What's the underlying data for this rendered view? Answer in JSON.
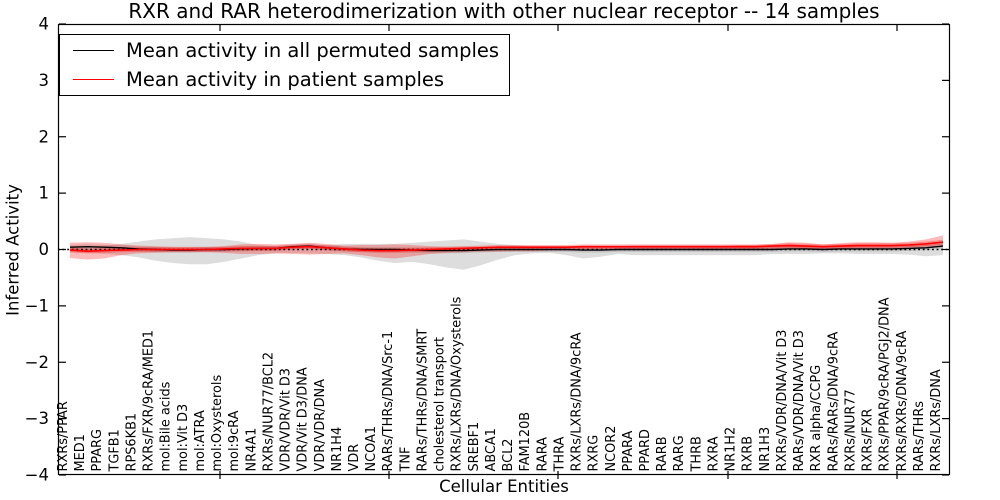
{
  "chart_data": {
    "type": "line",
    "title": "RXR and RAR heterodimerization with other nuclear receptor -- 14 samples",
    "xlabel": "Cellular Entities",
    "ylabel": "Inferred Activity",
    "ylim": [
      -4,
      4
    ],
    "ytick_labels": [
      "4",
      "3",
      "2",
      "1",
      "0",
      "−1",
      "−2",
      "−3",
      "−4"
    ],
    "grid": false,
    "legend_position": "upper left",
    "legend": [
      {
        "label": "Mean activity in all permuted samples",
        "color": "#000000"
      },
      {
        "label": "Mean activity in patient samples",
        "color": "#ff0000"
      }
    ],
    "zero_line": {
      "y": 0,
      "style": "dotted",
      "color": "#000000"
    },
    "categories": [
      "RXRs/PPAR",
      "MED1",
      "PPARG",
      "TGFB1",
      "RPS6KB1",
      "RXRs/FXR/9cRA/MED1",
      "mol:Bile acids",
      "mol:Vit D3",
      "mol:ATRA",
      "mol:Oxysterols",
      "mol:9cRA",
      "NR4A1",
      "RXRs/NUR77/BCL2",
      "VDR/VDR/Vit D3",
      "VDR/Vit D3/DNA",
      "VDR/VDR/DNA",
      "NR1H4",
      "VDR",
      "NCOA1",
      "RARs/THRs/DNA/Src-1",
      "TNF",
      "RARs/THRs/DNA/SMRT",
      "cholesterol transport",
      "RXRs/LXRs/DNA/Oxysterols",
      "SREBF1",
      "ABCA1",
      "BCL2",
      "FAM120B",
      "RARA",
      "THRA",
      "RXRs/LXRs/DNA/9cRA",
      "RXRG",
      "NCOR2",
      "PPARA",
      "PPARD",
      "RARB",
      "RARG",
      "THRB",
      "RXRA",
      "NR1H2",
      "RXRB",
      "NR1H3",
      "RXRs/VDR/DNA/Vit D3",
      "RARs/VDR/DNA/Vit D3",
      "RXR alpha/CCPG",
      "RARs/RARs/DNA/9cRA",
      "RXRs/NUR77",
      "RXRs/FXR",
      "RXRs/PPAR/9cRA/PGJ2/DNA",
      "RXRs/RXRs/DNA/9cRA",
      "RARs/THRs",
      "RXRs/LXRs/DNA"
    ],
    "series": [
      {
        "name": "Mean activity in all permuted samples",
        "color": "#000000",
        "values": [
          0.04,
          0.05,
          0.04,
          0.03,
          0.01,
          0.0,
          -0.01,
          -0.01,
          0.0,
          0.0,
          0.01,
          0.02,
          0.02,
          0.05,
          0.06,
          0.03,
          0.01,
          0.0,
          0.0,
          0.0,
          -0.01,
          -0.02,
          -0.02,
          -0.02,
          -0.01,
          0.0,
          0.0,
          0.0,
          0.0,
          0.0,
          -0.01,
          -0.01,
          0.0,
          0.0,
          0.0,
          0.0,
          0.0,
          0.0,
          0.0,
          0.0,
          0.0,
          0.0,
          0.01,
          0.01,
          0.0,
          0.01,
          0.01,
          0.01,
          0.01,
          0.02,
          0.03,
          0.06
        ]
      },
      {
        "name": "Mean activity in patient samples",
        "color": "#ff0000",
        "values": [
          -0.01,
          -0.03,
          -0.02,
          -0.01,
          0.0,
          0.0,
          0.0,
          0.0,
          0.0,
          0.01,
          0.02,
          0.02,
          0.02,
          0.04,
          0.05,
          0.03,
          0.01,
          -0.01,
          -0.02,
          -0.02,
          -0.01,
          0.0,
          0.01,
          0.02,
          0.03,
          0.04,
          0.04,
          0.04,
          0.04,
          0.04,
          0.05,
          0.05,
          0.05,
          0.05,
          0.05,
          0.05,
          0.05,
          0.05,
          0.05,
          0.05,
          0.05,
          0.06,
          0.07,
          0.06,
          0.05,
          0.06,
          0.07,
          0.07,
          0.07,
          0.08,
          0.1,
          0.13
        ]
      }
    ],
    "bands": [
      {
        "name": "permuted-range",
        "color": "#808080",
        "alpha": 0.27,
        "upper": [
          0.05,
          0.05,
          0.07,
          0.1,
          0.14,
          0.18,
          0.2,
          0.22,
          0.2,
          0.18,
          0.14,
          0.08,
          0.06,
          0.06,
          0.06,
          0.08,
          0.1,
          0.1,
          0.1,
          0.1,
          0.12,
          0.14,
          0.16,
          0.18,
          0.14,
          0.1,
          0.08,
          0.06,
          0.06,
          0.06,
          0.07,
          0.06,
          0.05,
          0.04,
          0.04,
          0.04,
          0.04,
          0.04,
          0.04,
          0.04,
          0.04,
          0.05,
          0.06,
          0.06,
          0.05,
          0.05,
          0.06,
          0.06,
          0.06,
          0.07,
          0.08,
          0.1
        ],
        "lower": [
          -0.05,
          -0.06,
          -0.08,
          -0.1,
          -0.14,
          -0.2,
          -0.24,
          -0.26,
          -0.26,
          -0.22,
          -0.16,
          -0.1,
          -0.07,
          -0.06,
          -0.07,
          -0.08,
          -0.1,
          -0.14,
          -0.2,
          -0.24,
          -0.22,
          -0.26,
          -0.32,
          -0.36,
          -0.28,
          -0.18,
          -0.1,
          -0.07,
          -0.06,
          -0.1,
          -0.16,
          -0.13,
          -0.08,
          -0.1,
          -0.1,
          -0.1,
          -0.1,
          -0.1,
          -0.1,
          -0.1,
          -0.1,
          -0.08,
          -0.08,
          -0.08,
          -0.07,
          -0.07,
          -0.08,
          -0.08,
          -0.08,
          -0.09,
          -0.12,
          -0.1
        ]
      },
      {
        "name": "permuted-inner",
        "color": "#808080",
        "alpha": 0.27,
        "around_series": 0,
        "half_width": 0.045
      },
      {
        "name": "patient-range",
        "color": "#ff0000",
        "alpha": 0.27,
        "upper": [
          0.12,
          0.13,
          0.12,
          0.09,
          0.07,
          0.06,
          0.05,
          0.05,
          0.05,
          0.06,
          0.09,
          0.1,
          0.09,
          0.1,
          0.12,
          0.1,
          0.07,
          0.08,
          0.08,
          0.09,
          0.08,
          0.06,
          0.05,
          0.05,
          0.05,
          0.05,
          0.05,
          0.05,
          0.05,
          0.05,
          0.06,
          0.06,
          0.06,
          0.07,
          0.07,
          0.07,
          0.07,
          0.07,
          0.07,
          0.08,
          0.08,
          0.09,
          0.13,
          0.12,
          0.09,
          0.11,
          0.13,
          0.13,
          0.12,
          0.14,
          0.18,
          0.25
        ],
        "lower": [
          -0.15,
          -0.18,
          -0.16,
          -0.1,
          -0.07,
          -0.06,
          -0.05,
          -0.05,
          -0.05,
          -0.06,
          -0.08,
          -0.08,
          -0.07,
          -0.08,
          -0.09,
          -0.08,
          -0.07,
          -0.1,
          -0.14,
          -0.16,
          -0.12,
          -0.08,
          -0.06,
          -0.05,
          -0.04,
          -0.04,
          -0.03,
          -0.03,
          -0.02,
          -0.02,
          -0.02,
          -0.01,
          -0.01,
          0.0,
          0.0,
          0.0,
          0.0,
          0.0,
          0.0,
          0.0,
          0.0,
          0.0,
          0.0,
          0.01,
          0.01,
          0.01,
          0.02,
          0.02,
          0.02,
          0.03,
          0.03,
          0.04
        ]
      },
      {
        "name": "patient-inner",
        "color": "#ff0000",
        "alpha": 0.27,
        "around_series": 1,
        "half_width": 0.04
      }
    ]
  }
}
